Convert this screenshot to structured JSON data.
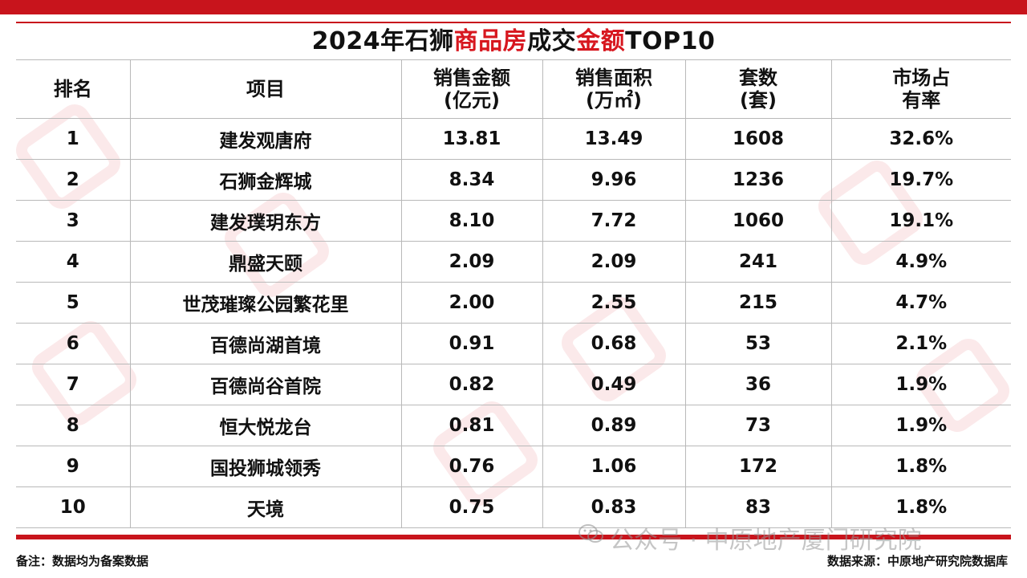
{
  "title": {
    "part1": "2024年石狮",
    "part2": "商品房",
    "part3": "成交",
    "part4": "金额",
    "part5": "TOP10"
  },
  "headers": {
    "rank": "排名",
    "project": "项目",
    "sales_amount_l1": "销售金额",
    "sales_amount_l2": "(亿元)",
    "sales_area_l1": "销售面积",
    "sales_area_l2": "(万㎡)",
    "units_l1": "套数",
    "units_l2": "(套)",
    "share_l1": "市场占",
    "share_l2": "有率"
  },
  "rows": [
    {
      "rank": "1",
      "project": "建发观唐府",
      "amount": "13.81",
      "area": "13.49",
      "units": "1608",
      "share": "32.6%"
    },
    {
      "rank": "2",
      "project": "石狮金辉城",
      "amount": "8.34",
      "area": "9.96",
      "units": "1236",
      "share": "19.7%"
    },
    {
      "rank": "3",
      "project": "建发璞玥东方",
      "amount": "8.10",
      "area": "7.72",
      "units": "1060",
      "share": "19.1%"
    },
    {
      "rank": "4",
      "project": "鼎盛天颐",
      "amount": "2.09",
      "area": "2.09",
      "units": "241",
      "share": "4.9%"
    },
    {
      "rank": "5",
      "project": "世茂璀璨公园繁花里",
      "amount": "2.00",
      "area": "2.55",
      "units": "215",
      "share": "4.7%"
    },
    {
      "rank": "6",
      "project": "百德尚湖首境",
      "amount": "0.91",
      "area": "0.68",
      "units": "53",
      "share": "2.1%"
    },
    {
      "rank": "7",
      "project": "百德尚谷首院",
      "amount": "0.82",
      "area": "0.49",
      "units": "36",
      "share": "1.9%"
    },
    {
      "rank": "8",
      "project": "恒大悦龙台",
      "amount": "0.81",
      "area": "0.89",
      "units": "73",
      "share": "1.9%"
    },
    {
      "rank": "9",
      "project": "国投狮城领秀",
      "amount": "0.76",
      "area": "1.06",
      "units": "172",
      "share": "1.8%"
    },
    {
      "rank": "10",
      "project": "天境",
      "amount": "0.75",
      "area": "0.83",
      "units": "83",
      "share": "1.8%"
    }
  ],
  "footer": {
    "note": "备注：数据均为备案数据",
    "source": "数据来源：中原地产研究院数据库",
    "watermark": "公众号 · 中原地产厦门研究院"
  },
  "colors": {
    "accent": "#c8141c",
    "title_highlight": "#d7171f"
  }
}
